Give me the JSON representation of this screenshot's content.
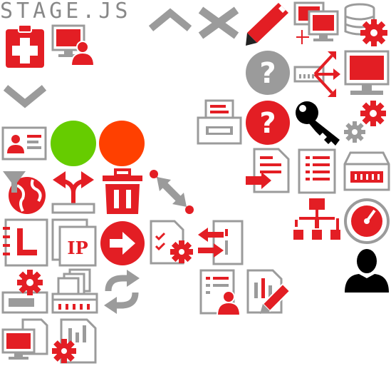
{
  "header": {
    "logo_text": "STAGE.JS"
  },
  "badges": {
    "ip_label": "IP"
  },
  "colors": {
    "red": "#e31e24",
    "gray": "#9b9b9b",
    "green": "#66cc00",
    "orange": "#ff4000",
    "black": "#000000"
  },
  "icons": [
    "clipboard-medical-icon",
    "computer-user-icon",
    "chevron-up-icon",
    "close-x-icon",
    "pencil-icon",
    "networked-computers-icon",
    "database-settings-icon",
    "help-gray-icon",
    "rack-arrows-icon",
    "monitor-icon",
    "chevron-down-icon",
    "printer-icon",
    "help-red-icon",
    "key-icon",
    "gears-icon",
    "id-card-icon",
    "green-circle-icon",
    "orange-circle-icon",
    "document-import-icon",
    "list-document-icon",
    "server-icon",
    "filter-globe-icon",
    "split-arrows-icon",
    "trash-icon",
    "resize-arrows-icon",
    "org-chart-icon",
    "gauge-icon",
    "log-book-icon",
    "ip-address-icon",
    "arrow-right-circle-icon",
    "task-settings-icon",
    "transfer-panel-icon",
    "user-silhouette-icon",
    "drive-settings-icon",
    "network-folders-icon",
    "refresh-icon",
    "user-report-icon",
    "edit-report-icon",
    "monitor-documents-icon",
    "document-settings-icon"
  ]
}
